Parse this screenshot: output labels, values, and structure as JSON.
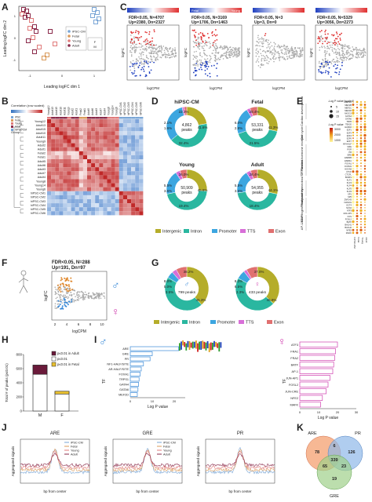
{
  "panel_labels": {
    "A": "A",
    "B": "B",
    "C": "C",
    "D": "D",
    "E": "E",
    "F": "F",
    "G": "G",
    "H": "H",
    "I": "I",
    "J": "J",
    "K": "K"
  },
  "colors": {
    "ipsc": "#7aa6d6",
    "fetal": "#d99a5a",
    "young": "#e07a7a",
    "adult": "#8a2a4a",
    "intergenic": "#b5ad2a",
    "intron": "#2ab7a0",
    "promoter": "#3ca6e0",
    "tts": "#d86fd8",
    "exon": "#e07070",
    "up": "#e03030",
    "down": "#2040c0",
    "male": "#3a8ad8",
    "female": "#d040b0"
  },
  "panelA": {
    "xlabel": "Leading logFC dim 1",
    "ylabel": "Leading logFC dim 2",
    "xticks": [
      "-1",
      "0",
      "1"
    ],
    "yticks": [
      "1",
      "0",
      "-1"
    ],
    "legend": [
      "iPSC-CM",
      "Fetal",
      "Young",
      "Adult"
    ],
    "sex_legend": [
      "F",
      "M"
    ]
  },
  "panelC": [
    {
      "stats": "FDR<0.05, N=4707",
      "updn": "Up=2380, Dn=2327",
      "bar_left": "",
      "bar_right": ""
    },
    {
      "stats": "FDR<0.05, N=3169",
      "updn": "Up=1706, Dn=1463",
      "bar_left": "Fetal",
      "bar_right": "Young"
    },
    {
      "stats": "FDR<0.05, N=3",
      "updn": "Up=3, Dn=0",
      "bar_left": "",
      "bar_right": ""
    },
    {
      "stats": "FDR<0.05, N=5329",
      "updn": "Up=3056, Dn=2273",
      "bar_left": "",
      "bar_right": ""
    }
  ],
  "panelC_axes": {
    "xlabel": "logCPM",
    "ylabel": "logFC"
  },
  "panelB": {
    "key_title": "Correlation (row scaled)",
    "rows": [
      "Young12",
      "Adult13",
      "Adult15",
      "Adult10",
      "Adult11",
      "Young9",
      "Adult2",
      "Adult1",
      "Fetal2",
      "Fetal1",
      "Adult5",
      "Adult6",
      "Adult3",
      "Adult7",
      "Adult4",
      "Young8",
      "Young14",
      "Young6",
      "hiPSC-CM1",
      "hiPSC-CM2",
      "hiPSC-CM3",
      "hiPSC-CM4",
      "hiPSC-CM5",
      "hiPSC-CM6"
    ],
    "group_label": "Group",
    "legend": [
      "iPSC",
      "Fetal",
      "Young",
      "Adult",
      "hiPSC-CM"
    ]
  },
  "panelD": [
    {
      "title": "hiPSC-CM",
      "center": "4,862 peaks",
      "pcts": [
        "22.3%",
        "2.1%",
        "1.6%",
        "41.6%",
        "32.4%"
      ],
      "values": [
        22.3,
        41.6,
        32.4,
        1.6,
        2.1
      ]
    },
    {
      "title": "Fetal",
      "center": "53,331 peaks",
      "pcts": [
        "28.4%",
        "6.0%",
        "2.8%",
        "41.3%",
        "21.5%"
      ],
      "values": [
        28.4,
        41.3,
        21.5,
        2.8,
        6.0
      ]
    },
    {
      "title": "Young",
      "center": "50,909 peaks",
      "pcts": [
        "26.0%",
        "5.5%",
        "3.5%",
        "45.6%",
        "19.4%"
      ],
      "values": [
        26.0,
        45.6,
        19.4,
        3.5,
        5.5
      ]
    },
    {
      "title": "Adult",
      "center": "54,955 peaks",
      "pcts": [
        "28.4%",
        "5.5%",
        "3.6%",
        "44.1%",
        "18.4%"
      ],
      "values": [
        28.4,
        44.1,
        18.4,
        3.6,
        5.5
      ]
    }
  ],
  "legendD": [
    "Intergenic",
    "Intron",
    "Promoter",
    "TTS",
    "Exon"
  ],
  "panelE": {
    "size_title": "-Log P value [scaled]",
    "size_vals": [
      "5",
      "10",
      "15"
    ],
    "color_title": "-Log P value",
    "color_vals": [
      "3000",
      "2000",
      "1000"
    ],
    "groups": [
      "Cardiac development",
      "Cell cycle",
      "Steroid hormone receptor",
      "TF Families",
      "Forkhead/ Homeobox/ CTF",
      "Zinc finger/ Pluripotency",
      "AP-1/bZIP"
    ],
    "cols": [
      "hiPSC-CM",
      "Fetal",
      "Young",
      "Adult"
    ],
    "genes": [
      "MEF2A",
      "MEF2B",
      "MEF2C",
      "MEF2D",
      "NKX2.5",
      "GATA4",
      "GATA6",
      "TBX5",
      "TBX20",
      "HAND2",
      "E2F1",
      "E2F3",
      "E2F4",
      "E2F6",
      "E2F7",
      "AR-HALF",
      "GRE",
      "PGR",
      "PR",
      "ERE",
      "ESRRB",
      "ESRRA",
      "FOXA1",
      "FOXM1",
      "HOXA9",
      "CTCF",
      "CTCFL",
      "BORIS",
      "KLF1",
      "KLF3",
      "KLF4",
      "KLF5",
      "KLF9",
      "SP1",
      "SP5",
      "ZNF143",
      "NANOG",
      "OCT4",
      "SOX2",
      "ATF3",
      "JUN-AP1",
      "FOS",
      "FOSL2",
      "BATF",
      "BACH1",
      "BACH2",
      "NFE2",
      "MAFK"
    ]
  },
  "panelF": {
    "stats": "FDR<0.05, N=288",
    "updn": "Up=191, Dn=97",
    "xlabel": "logCPM",
    "ylabel": "logFC",
    "xticks": [
      "2",
      "4",
      "6",
      "8",
      "10"
    ]
  },
  "panelG": [
    {
      "center": "799 peaks",
      "pcts": [
        "38.2%",
        "8.0%",
        "5.0%",
        "3.5%",
        "45.3%"
      ],
      "values": [
        38.2,
        45.3,
        5.0,
        3.5,
        8.0
      ]
    },
    {
      "center": "433 peaks",
      "pcts": [
        "37.0%",
        "8.3%",
        "6.5%",
        "2.3%",
        "45.9%"
      ],
      "values": [
        37.0,
        45.9,
        6.5,
        2.3,
        8.3
      ]
    }
  ],
  "legendG": [
    "Intergenic",
    "Intron",
    "Promoter",
    "TTS",
    "Exon"
  ],
  "panelH": {
    "ylabel": "Total # of peaks (p≤0.01)",
    "yticks": [
      "800",
      "600",
      "400",
      "200",
      "0"
    ],
    "cats": [
      "M",
      "F"
    ],
    "legend": [
      "p≤0.01 in Adult",
      "p≤0.01",
      "p≤0.01 in Fetal"
    ],
    "stack": [
      {
        "cat": "M",
        "adult": 130,
        "total": 650,
        "fetal": 0
      },
      {
        "cat": "F",
        "adult": 0,
        "total": 280,
        "fetal": 40
      }
    ],
    "ymax": 800
  },
  "panelI": {
    "male_tfs": [
      "ARE",
      "GRE",
      "PR",
      "NF1-HALF/SITE",
      "AR-HALF/SITE",
      "FOXA1",
      "TRPS1",
      "GATA4",
      "GATA6",
      "MEF2D"
    ],
    "male_vals": [
      22,
      10,
      9,
      6,
      5,
      4.5,
      4,
      3.8,
      3.5,
      3.2
    ],
    "female_tfs": [
      "ATF3",
      "FRA1",
      "FRA2",
      "BATF",
      "AP-1",
      "JUN-AP1",
      "FOSL2",
      "JUN-CRE",
      "NFE2",
      "MAFK"
    ],
    "female_vals": [
      20,
      19,
      18.5,
      18,
      17.5,
      16,
      15,
      14,
      12,
      11
    ],
    "xlabel": "Log P value",
    "ylabel": "TF",
    "male_xticks": [
      "0",
      "10",
      "20"
    ],
    "female_xticks": [
      "0",
      "10",
      "20",
      "30"
    ]
  },
  "panelJ": [
    {
      "title": "ARE"
    },
    {
      "title": "GRE"
    },
    {
      "title": "PR"
    }
  ],
  "panelJ_axes": {
    "xlabel": "bp from center",
    "ylabel": "Aggregated signals"
  },
  "panelJ_legend": [
    "iPSC-CM",
    "Fetal",
    "Young",
    "Adult"
  ],
  "panelK": {
    "labels": [
      "ARE",
      "PR",
      "GRE"
    ],
    "nums": [
      "78",
      "126",
      "339",
      "65",
      "23",
      "19",
      "6"
    ]
  }
}
